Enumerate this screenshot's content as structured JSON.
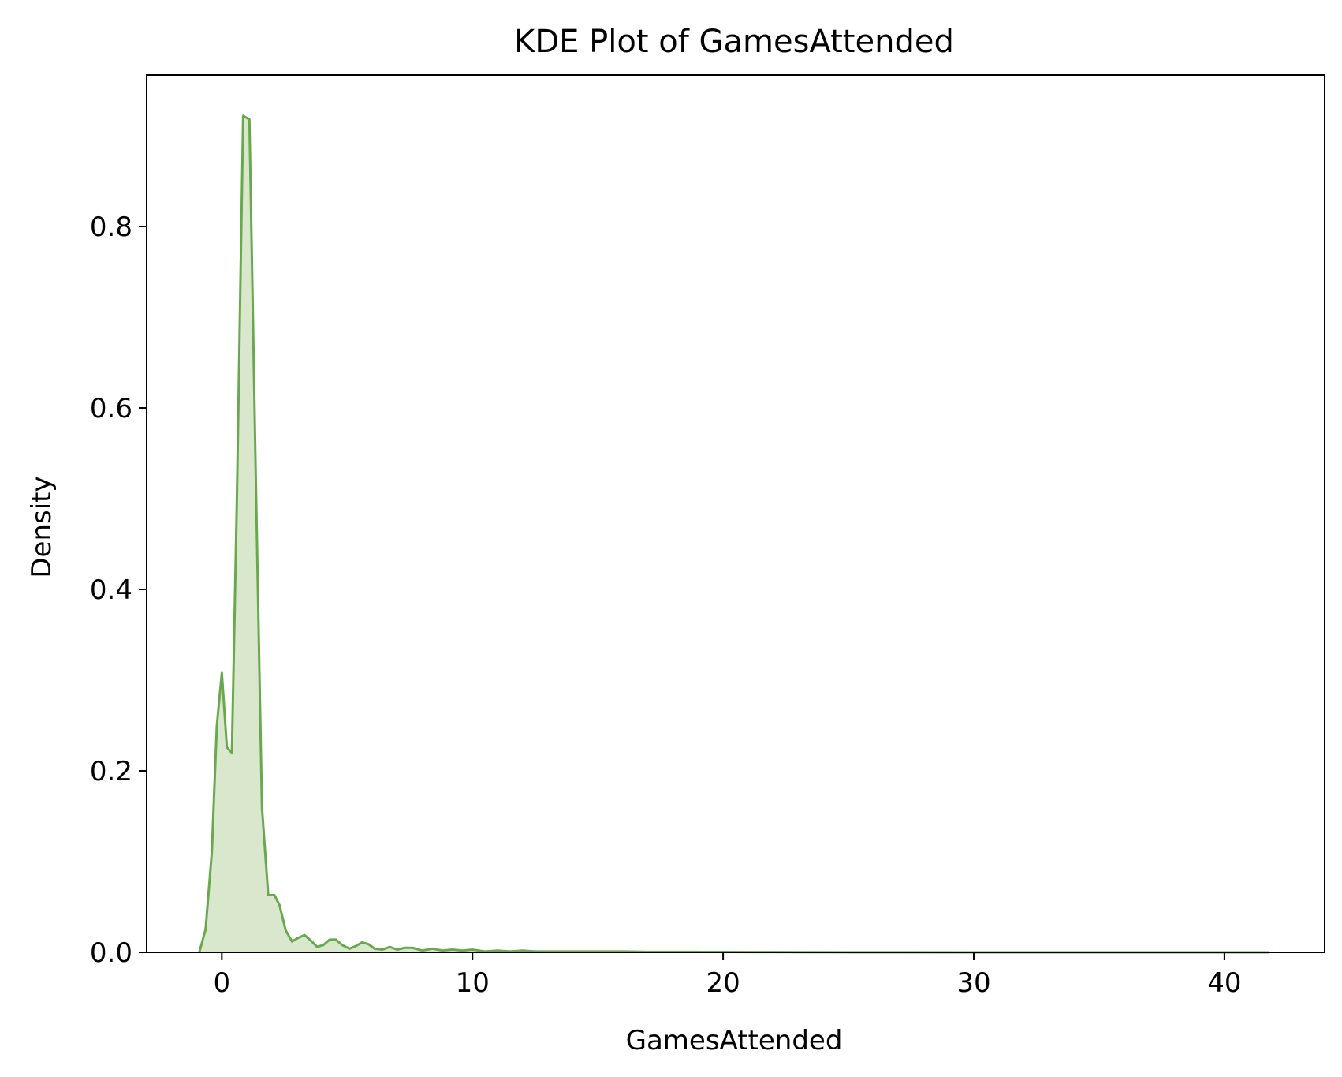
{
  "chart_data": {
    "type": "area",
    "title": "KDE Plot of GamesAttended",
    "xlabel": "GamesAttended",
    "ylabel": "Density",
    "xlim": [
      -3,
      44
    ],
    "ylim": [
      0,
      0.967
    ],
    "xticks": [
      0,
      10,
      20,
      30,
      40
    ],
    "yticks": [
      0.0,
      0.2,
      0.4,
      0.6,
      0.8
    ],
    "xtick_labels": [
      "0",
      "10",
      "20",
      "30",
      "40"
    ],
    "ytick_labels": [
      "0.0",
      "0.2",
      "0.4",
      "0.6",
      "0.8"
    ],
    "grid": false,
    "legend": null,
    "series": [
      {
        "name": "GamesAttended",
        "color": "#6aa84f",
        "fill_color": "#d9e8cc",
        "x": [
          -0.9,
          -0.65,
          -0.4,
          -0.2,
          0.0,
          0.2,
          0.4,
          0.6,
          0.85,
          1.1,
          1.35,
          1.6,
          1.85,
          2.1,
          2.3,
          2.55,
          2.8,
          3.05,
          3.3,
          3.55,
          3.8,
          4.05,
          4.3,
          4.55,
          4.8,
          5.1,
          5.35,
          5.6,
          5.85,
          6.1,
          6.4,
          6.7,
          7.0,
          7.3,
          7.6,
          8.0,
          8.4,
          8.8,
          9.2,
          9.6,
          10.0,
          10.5,
          11.0,
          11.5,
          12.0,
          12.5,
          13.0,
          14.0,
          15.0,
          16.0,
          17.0,
          18.0,
          19.0,
          20.0,
          21.0,
          22.0,
          23.0,
          25.0,
          30.0,
          35.0,
          40.0,
          41.8
        ],
        "y": [
          0.0,
          0.025,
          0.11,
          0.25,
          0.308,
          0.226,
          0.22,
          0.5,
          0.922,
          0.918,
          0.53,
          0.16,
          0.063,
          0.063,
          0.052,
          0.024,
          0.012,
          0.016,
          0.019,
          0.013,
          0.006,
          0.008,
          0.014,
          0.014,
          0.008,
          0.004,
          0.007,
          0.011,
          0.009,
          0.004,
          0.003,
          0.006,
          0.003,
          0.005,
          0.005,
          0.002,
          0.004,
          0.002,
          0.003,
          0.002,
          0.003,
          0.001,
          0.002,
          0.001,
          0.002,
          0.001,
          0.001,
          0.001,
          0.001,
          0.001,
          0.0005,
          0.0005,
          0.0005,
          0.0004,
          0.0003,
          0.0003,
          0.0002,
          0.0001,
          0.0,
          0.0,
          0.0,
          0.0
        ]
      }
    ]
  }
}
